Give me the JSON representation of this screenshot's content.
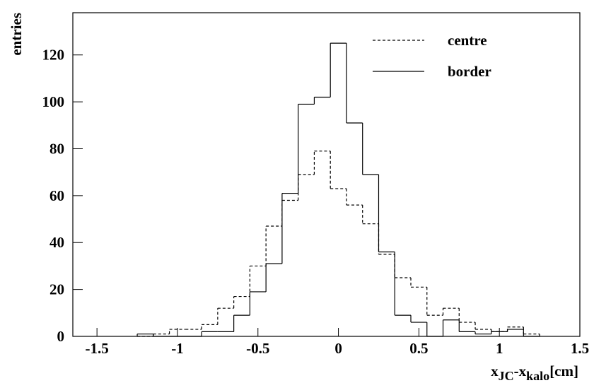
{
  "chart_data": {
    "type": "histogram",
    "bins": [
      -1.25,
      -1.15,
      -1.05,
      -0.95,
      -0.85,
      -0.75,
      -0.65,
      -0.55,
      -0.45,
      -0.35,
      -0.25,
      -0.15,
      -0.05,
      0.05,
      0.15,
      0.25,
      0.35,
      0.45,
      0.55,
      0.65,
      0.75,
      0.85,
      0.95,
      1.05,
      1.15,
      1.25
    ],
    "series": [
      {
        "name": "centre",
        "color": "#000000",
        "dash": true,
        "values": [
          0,
          1,
          3,
          3,
          5,
          12,
          17,
          30,
          47,
          58,
          69,
          79,
          63,
          56,
          48,
          35,
          25,
          21,
          9,
          12,
          6,
          3,
          2,
          4,
          1
        ]
      },
      {
        "name": "border",
        "color": "#000000",
        "dash": false,
        "values": [
          1,
          0,
          0,
          0,
          2,
          2,
          9,
          19,
          31,
          61,
          99,
          102,
          125,
          91,
          69,
          36,
          9,
          6,
          0,
          7,
          2,
          1,
          2,
          3,
          0
        ]
      }
    ],
    "x_label": [
      "x",
      "JC",
      "-x",
      "kalo",
      "[cm]"
    ],
    "y_label": "entries",
    "xlim": [
      -1.65,
      1.5
    ],
    "xticks": [
      -1.5,
      -1,
      -0.5,
      0,
      0.5,
      1,
      1.5
    ],
    "ylim": [
      0,
      138
    ],
    "yticks": [
      0,
      20,
      40,
      60,
      80,
      100,
      120
    ],
    "legend": "top-right"
  }
}
